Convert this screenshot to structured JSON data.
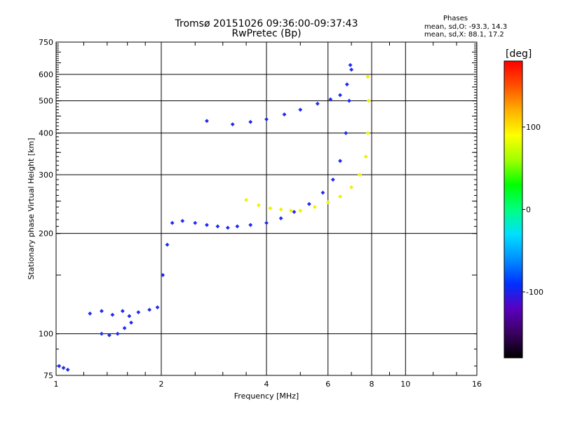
{
  "chart_data": {
    "type": "scatter",
    "title": "Tromsø 20151026 09:36:00-09:37:43",
    "subtitle": "RwPretec (Bp)",
    "xlabel": "Frequency [MHz]",
    "ylabel": "Stationary phase Virtual Height [km]",
    "x_scale": "log",
    "y_scale": "log",
    "xlim": [
      1,
      16
    ],
    "ylim": [
      75,
      750
    ],
    "x_ticks": [
      1,
      2,
      4,
      6,
      8,
      10,
      16
    ],
    "y_ticks": [
      75,
      100,
      200,
      300,
      400,
      500,
      600,
      750
    ],
    "x_gridlines": [
      2,
      4,
      6,
      8,
      10
    ],
    "y_gridlines": [
      100,
      200,
      300,
      400,
      500,
      600
    ],
    "grid": true,
    "stats": {
      "heading": "Phases",
      "o_mode": "mean, sd,O: -93.3, 14.3",
      "x_mode": "mean, sd,X:  88.1, 17.2"
    },
    "colorbar": {
      "label": "[deg]",
      "min": -180,
      "max": 180,
      "ticks": [
        100,
        0,
        -100
      ],
      "colors": [
        "#000000",
        "#3a0060",
        "#5a00c0",
        "#0030ff",
        "#0090ff",
        "#00e0ff",
        "#00ff80",
        "#00ff00",
        "#a0ff00",
        "#ffff00",
        "#ffb000",
        "#ff5000",
        "#ff0000"
      ]
    },
    "series": [
      {
        "mode": "O",
        "color": "#1f2cf0",
        "x": [
          1.02,
          1.05,
          1.08,
          1.25,
          1.35,
          1.45,
          1.55,
          1.62,
          1.35,
          1.42,
          1.5,
          1.57,
          1.64,
          1.72,
          1.85,
          1.95,
          2.02,
          2.08,
          2.15,
          2.3,
          2.5,
          2.7,
          2.9,
          3.1,
          3.3,
          3.6,
          4.0,
          4.4,
          4.8,
          5.3,
          5.8,
          6.2,
          6.5,
          6.75,
          6.9,
          7.0,
          2.7,
          3.2,
          3.6,
          4.0,
          4.5,
          5.0,
          5.6,
          6.1,
          6.5,
          6.8,
          6.95
        ],
        "y": [
          80,
          79,
          78,
          115,
          117,
          114,
          117,
          113,
          100,
          99,
          100,
          104,
          108,
          116,
          118,
          120,
          150,
          185,
          215,
          218,
          215,
          212,
          210,
          208,
          210,
          212,
          215,
          222,
          232,
          245,
          265,
          290,
          330,
          400,
          500,
          620,
          435,
          425,
          432,
          440,
          455,
          470,
          490,
          505,
          520,
          560,
          640
        ]
      },
      {
        "mode": "X",
        "color": "#f0f000",
        "x": [
          3.5,
          3.8,
          4.1,
          4.4,
          4.7,
          5.0,
          5.5,
          6.0,
          6.5,
          7.0,
          7.4,
          7.7,
          7.8,
          7.85,
          7.8
        ],
        "y": [
          252,
          243,
          238,
          236,
          234,
          234,
          240,
          248,
          258,
          275,
          300,
          340,
          400,
          500,
          590
        ]
      }
    ]
  }
}
